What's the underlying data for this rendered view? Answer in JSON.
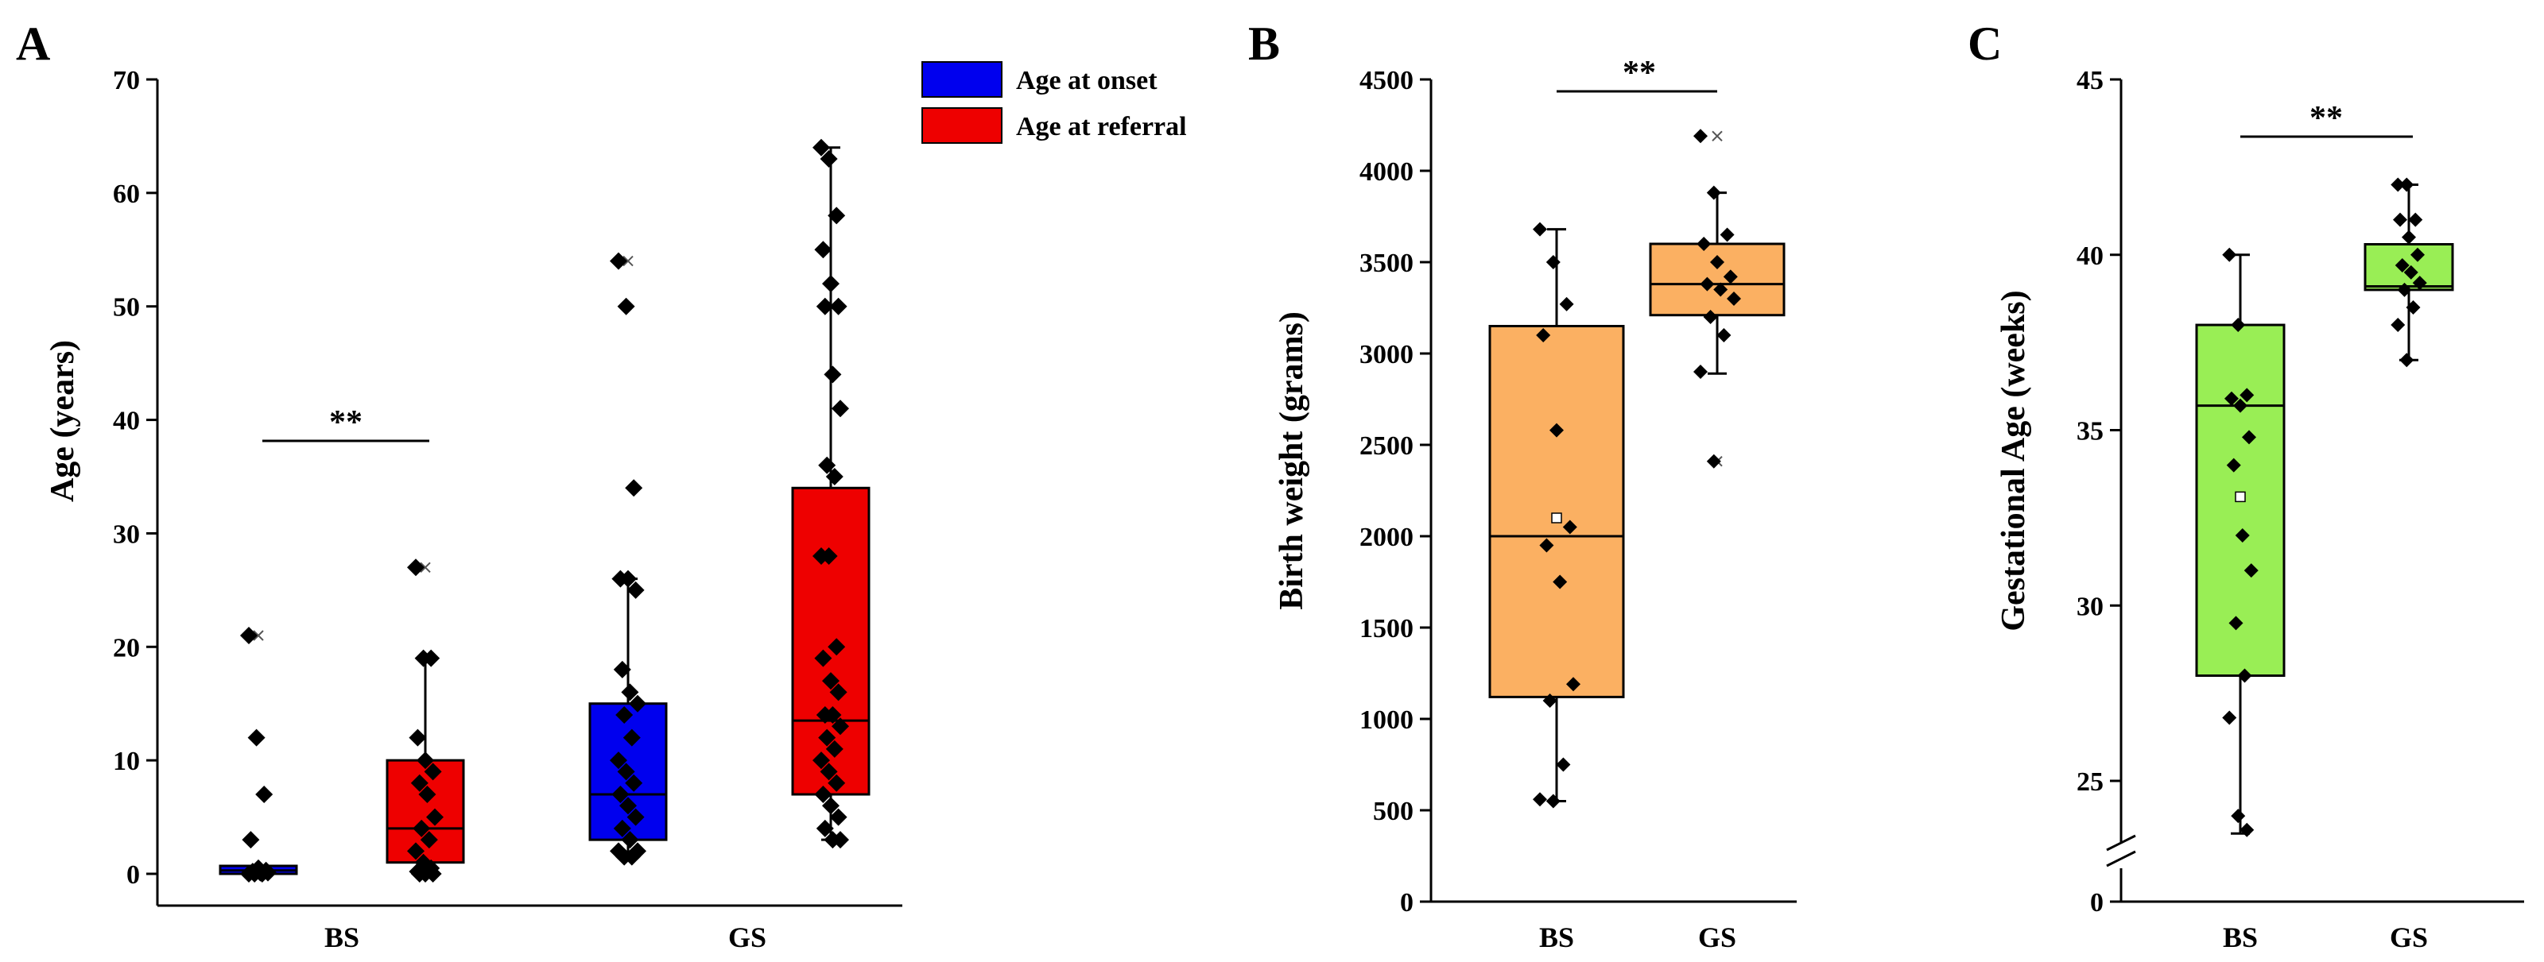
{
  "chart_data": [
    {
      "panel": "A",
      "type": "box",
      "ylabel": "Age (years)",
      "ylim": [
        0,
        70
      ],
      "yticks": [
        0,
        10,
        20,
        30,
        40,
        50,
        60,
        70
      ],
      "categories": [
        "BS",
        "GS"
      ],
      "legend": {
        "placement": "top-right",
        "entries": [
          "Age at onset",
          "Age at referral"
        ]
      },
      "series": [
        {
          "name": "Age at onset",
          "color": "#0000ee",
          "boxes": [
            {
              "category": "BS",
              "min": 0,
              "q1": 0,
              "median": 0.3,
              "q3": 0.7,
              "max": 0.7,
              "outliers": [
                21
              ],
              "points": [
                21,
                12,
                7,
                3,
                0.5,
                0.3,
                0.2,
                0.1,
                0.1,
                0,
                0,
                0
              ]
            },
            {
              "category": "GS",
              "min": 1.5,
              "q1": 3,
              "median": 7,
              "q3": 15,
              "max": 26,
              "outliers": [
                54
              ],
              "points": [
                54,
                50,
                34,
                26,
                26,
                25,
                18,
                16,
                15,
                14,
                12,
                10,
                9,
                8,
                7,
                6,
                5,
                4,
                3,
                2,
                1.5,
                1.5,
                2
              ]
            }
          ]
        },
        {
          "name": "Age at referral",
          "color": "#ee0000",
          "boxes": [
            {
              "category": "BS",
              "min": 0,
              "q1": 1,
              "median": 4,
              "q3": 10,
              "max": 19,
              "outliers": [
                27
              ],
              "points": [
                27,
                19,
                19,
                12,
                10,
                9,
                8,
                7,
                5,
                4,
                3,
                2,
                1,
                0.5,
                0.2,
                0,
                0,
                0
              ]
            },
            {
              "category": "GS",
              "min": 3,
              "q1": 7,
              "median": 13.5,
              "q3": 34,
              "max": 64,
              "outliers": [],
              "points": [
                64,
                63,
                58,
                55,
                52,
                50,
                50,
                44,
                41,
                36,
                35,
                28,
                28,
                20,
                19,
                17,
                16,
                14,
                14,
                13,
                12,
                11,
                10,
                9,
                8,
                7,
                6,
                5,
                4,
                3,
                3
              ]
            }
          ]
        }
      ],
      "significance": [
        {
          "between": [
            "BS Age at onset",
            "BS Age at referral"
          ],
          "label": "**"
        }
      ]
    },
    {
      "panel": "B",
      "type": "box",
      "ylabel": "Birth weight (grams)",
      "ylim": [
        0,
        4500
      ],
      "yticks": [
        0,
        500,
        1000,
        1500,
        2000,
        2500,
        3000,
        3500,
        4000,
        4500
      ],
      "categories": [
        "BS",
        "GS"
      ],
      "color": "#fbb062",
      "boxes": [
        {
          "category": "BS",
          "min": 550,
          "q1": 1120,
          "median": 2000,
          "q3": 3150,
          "max": 3680,
          "mean": 2100,
          "points": [
            3680,
            3500,
            3270,
            3100,
            2580,
            2050,
            1950,
            1750,
            1190,
            1100,
            750,
            560,
            550
          ]
        },
        {
          "category": "GS",
          "min": 2890,
          "q1": 3210,
          "median": 3380,
          "q3": 3600,
          "max": 3880,
          "outliers": [
            4190,
            2410
          ],
          "points": [
            4190,
            3880,
            3650,
            3600,
            3500,
            3420,
            3380,
            3350,
            3300,
            3200,
            3100,
            2900,
            2410
          ]
        }
      ],
      "significance": [
        {
          "between": [
            "BS",
            "GS"
          ],
          "label": "**"
        }
      ]
    },
    {
      "panel": "C",
      "type": "box",
      "ylabel": "Gestational Age (weeks)",
      "yaxis_break": true,
      "yticks": [
        0,
        25,
        30,
        35,
        40,
        45
      ],
      "categories": [
        "BS",
        "GS"
      ],
      "color": "#99ee55",
      "boxes": [
        {
          "category": "BS",
          "min": 23.5,
          "q1": 28,
          "median": 35.7,
          "q3": 38,
          "max": 40,
          "mean": 33.1,
          "points": [
            40,
            38,
            36,
            35.9,
            35.7,
            34.8,
            34,
            32,
            31,
            29.5,
            28,
            26.8,
            24,
            23.6
          ]
        },
        {
          "category": "GS",
          "min": 37,
          "q1": 39,
          "median": 39.1,
          "q3": 40.3,
          "max": 42,
          "outliers": [],
          "points": [
            42,
            42,
            41,
            41,
            40.5,
            40,
            39.7,
            39.5,
            39.2,
            39,
            38.5,
            38,
            37
          ]
        }
      ],
      "significance": [
        {
          "between": [
            "BS",
            "GS"
          ],
          "label": "**"
        }
      ]
    }
  ]
}
